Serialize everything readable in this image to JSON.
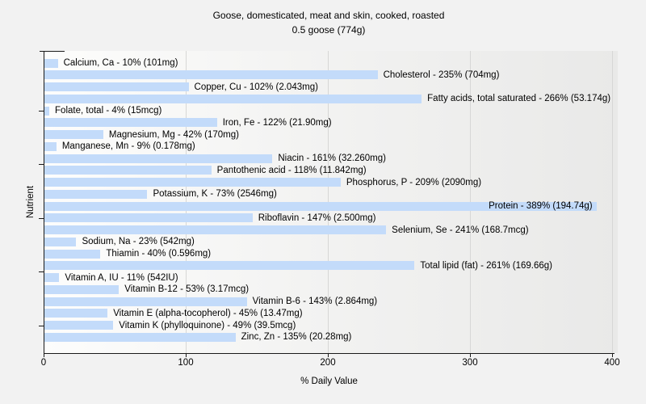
{
  "colors": {
    "bar": "#c3dbfa",
    "page_bg": "#f2f2f2",
    "plot_bg_left": "#fdfdfc",
    "plot_bg_right": "#e9e9e8",
    "gridline": "#d7d7d6",
    "axis": "#1a1a1a"
  },
  "chart_data": {
    "type": "bar",
    "orientation": "horizontal",
    "title": "Goose, domesticated, meat and skin, cooked, roasted",
    "subtitle": "0.5 goose (774g)",
    "xlabel": "% Daily Value",
    "ylabel": "Nutrient",
    "xlim": [
      0,
      400
    ],
    "x_ticks": [
      0,
      100,
      200,
      300,
      400
    ],
    "grid": "vertical-only",
    "legend": "none",
    "categories": [
      "Calcium, Ca",
      "Cholesterol",
      "Copper, Cu",
      "Fatty acids, total saturated",
      "Folate, total",
      "Iron, Fe",
      "Magnesium, Mg",
      "Manganese, Mn",
      "Niacin",
      "Pantothenic acid",
      "Phosphorus, P",
      "Potassium, K",
      "Protein",
      "Riboflavin",
      "Selenium, Se",
      "Sodium, Na",
      "Thiamin",
      "Total lipid (fat)",
      "Vitamin A, IU",
      "Vitamin B-12",
      "Vitamin B-6",
      "Vitamin E (alpha-tocopherol)",
      "Vitamin K (phylloquinone)",
      "Zinc, Zn"
    ],
    "values": [
      10,
      235,
      102,
      266,
      4,
      122,
      42,
      9,
      161,
      118,
      209,
      73,
      389,
      147,
      241,
      23,
      40,
      261,
      11,
      53,
      143,
      45,
      49,
      135
    ],
    "nutrients": [
      {
        "name": "Calcium, Ca",
        "percent": 10,
        "amount": "101mg",
        "label": "Calcium, Ca - 10% (101mg)"
      },
      {
        "name": "Cholesterol",
        "percent": 235,
        "amount": "704mg",
        "label": "Cholesterol - 235% (704mg)"
      },
      {
        "name": "Copper, Cu",
        "percent": 102,
        "amount": "2.043mg",
        "label": "Copper, Cu - 102% (2.043mg)"
      },
      {
        "name": "Fatty acids, total saturated",
        "percent": 266,
        "amount": "53.174g",
        "label": "Fatty acids, total saturated - 266% (53.174g)"
      },
      {
        "name": "Folate, total",
        "percent": 4,
        "amount": "15mcg",
        "label": "Folate, total - 4% (15mcg)"
      },
      {
        "name": "Iron, Fe",
        "percent": 122,
        "amount": "21.90mg",
        "label": "Iron, Fe - 122% (21.90mg)"
      },
      {
        "name": "Magnesium, Mg",
        "percent": 42,
        "amount": "170mg",
        "label": "Magnesium, Mg - 42% (170mg)"
      },
      {
        "name": "Manganese, Mn",
        "percent": 9,
        "amount": "0.178mg",
        "label": "Manganese, Mn - 9% (0.178mg)"
      },
      {
        "name": "Niacin",
        "percent": 161,
        "amount": "32.260mg",
        "label": "Niacin - 161% (32.260mg)"
      },
      {
        "name": "Pantothenic acid",
        "percent": 118,
        "amount": "11.842mg",
        "label": "Pantothenic acid - 118% (11.842mg)"
      },
      {
        "name": "Phosphorus, P",
        "percent": 209,
        "amount": "2090mg",
        "label": "Phosphorus, P - 209% (2090mg)"
      },
      {
        "name": "Potassium, K",
        "percent": 73,
        "amount": "2546mg",
        "label": "Potassium, K - 73% (2546mg)"
      },
      {
        "name": "Protein",
        "percent": 389,
        "amount": "194.74g",
        "label": "Protein - 389% (194.74g)",
        "label_inside": true
      },
      {
        "name": "Riboflavin",
        "percent": 147,
        "amount": "2.500mg",
        "label": "Riboflavin - 147% (2.500mg)"
      },
      {
        "name": "Selenium, Se",
        "percent": 241,
        "amount": "168.7mcg",
        "label": "Selenium, Se - 241% (168.7mcg)"
      },
      {
        "name": "Sodium, Na",
        "percent": 23,
        "amount": "542mg",
        "label": "Sodium, Na - 23% (542mg)"
      },
      {
        "name": "Thiamin",
        "percent": 40,
        "amount": "0.596mg",
        "label": "Thiamin - 40% (0.596mg)"
      },
      {
        "name": "Total lipid (fat)",
        "percent": 261,
        "amount": "169.66g",
        "label": "Total lipid (fat) - 261% (169.66g)"
      },
      {
        "name": "Vitamin A, IU",
        "percent": 11,
        "amount": "542IU",
        "label": "Vitamin A, IU - 11% (542IU)"
      },
      {
        "name": "Vitamin B-12",
        "percent": 53,
        "amount": "3.17mcg",
        "label": "Vitamin B-12 - 53% (3.17mcg)"
      },
      {
        "name": "Vitamin B-6",
        "percent": 143,
        "amount": "2.864mg",
        "label": "Vitamin B-6 - 143% (2.864mg)"
      },
      {
        "name": "Vitamin E (alpha-tocopherol)",
        "percent": 45,
        "amount": "13.47mg",
        "label": "Vitamin E (alpha-tocopherol) - 45% (13.47mg)"
      },
      {
        "name": "Vitamin K (phylloquinone)",
        "percent": 49,
        "amount": "39.5mcg",
        "label": "Vitamin K (phylloquinone) - 49% (39.5mcg)"
      },
      {
        "name": "Zinc, Zn",
        "percent": 135,
        "amount": "20.28mg",
        "label": "Zinc, Zn - 135% (20.28mg)"
      }
    ]
  }
}
